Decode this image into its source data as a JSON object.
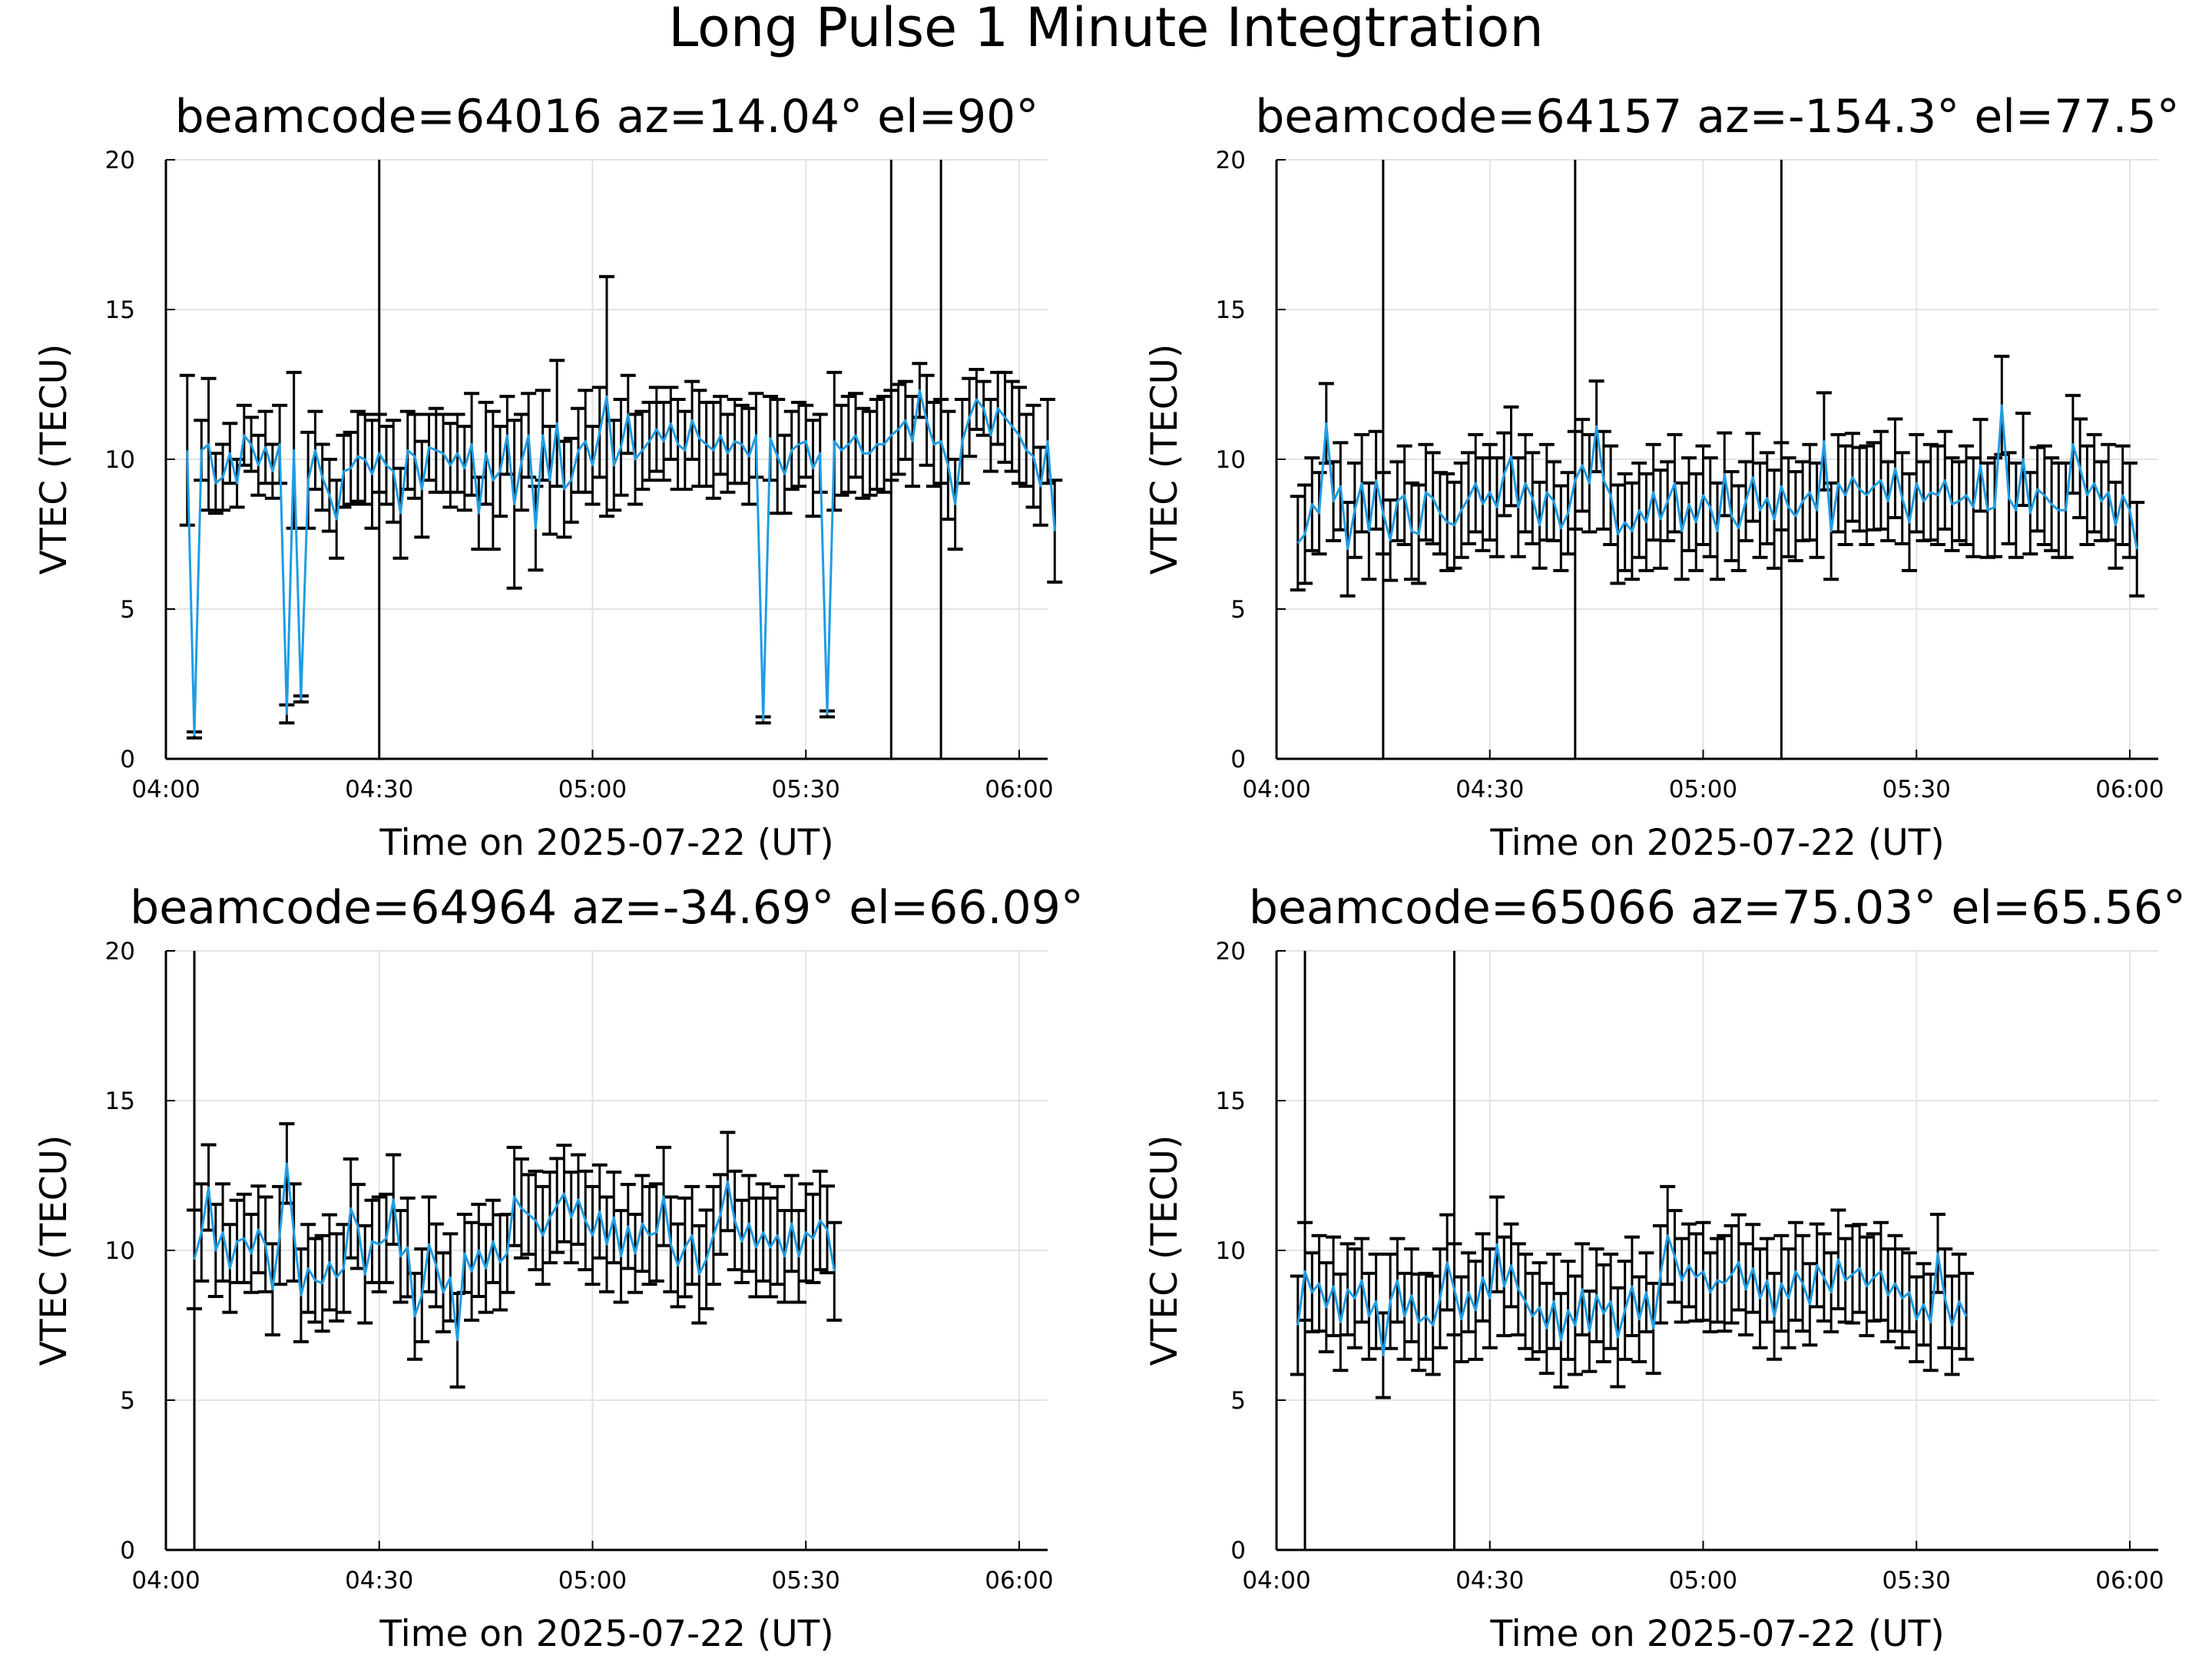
{
  "title": "Long Pulse 1 Minute Integtration",
  "colors": {
    "series": "#1f9ce3",
    "errorbar": "#000000",
    "grid": "#e3e3e3"
  },
  "chart_data": [
    {
      "type": "line",
      "title": "beamcode=64016 az=14.04° el=90°",
      "xlabel": "Time on 2025-07-22 (UT)",
      "ylabel": "VTEC (TECU)",
      "xlim": [
        "04:00",
        "06:04"
      ],
      "ylim": [
        0,
        20
      ],
      "xticks": [
        "04:00",
        "04:30",
        "05:00",
        "05:30",
        "06:00"
      ],
      "yticks": [
        "0",
        "5",
        "10",
        "15",
        "20"
      ],
      "grid": true,
      "x_start": "04:03",
      "x_step_minutes": 1,
      "series": [
        {
          "y": [
            10.3,
            0.8,
            10.3,
            10.5,
            9.2,
            9.4,
            10.2,
            9.2,
            10.8,
            10.5,
            9.8,
            10.4,
            9.6,
            10.5,
            1.5,
            10.3,
            2.0,
            9.3,
            10.3,
            9.4,
            8.8,
            8.0,
            9.6,
            9.7,
            10.1,
            10.0,
            9.5,
            10.2,
            9.8,
            9.6,
            8.2,
            10.3,
            10.1,
            9.0,
            10.4,
            10.3,
            10.2,
            9.8,
            10.2,
            9.7,
            10.5,
            8.2,
            10.2,
            9.3,
            9.6,
            10.8,
            8.5,
            9.9,
            10.8,
            7.7,
            10.8,
            9.3,
            11.2,
            9.0,
            9.3,
            10.3,
            10.6,
            9.8,
            10.9,
            12.1,
            9.8,
            10.4,
            11.5,
            10.0,
            10.3,
            10.6,
            11.0,
            10.6,
            11.2,
            10.5,
            10.3,
            11.3,
            10.7,
            10.5,
            10.3,
            10.8,
            10.2,
            10.6,
            10.5,
            10.1,
            10.8,
            1.3,
            10.7,
            10.1,
            9.5,
            10.3,
            10.5,
            10.6,
            9.7,
            10.2,
            1.5,
            10.6,
            10.3,
            10.5,
            10.8,
            10.2,
            10.2,
            10.5,
            10.5,
            10.8,
            11.0,
            11.3,
            10.6,
            12.3,
            11.3,
            10.5,
            10.6,
            9.8,
            8.5,
            10.6,
            11.4,
            12.0,
            11.7,
            10.8,
            11.7,
            11.4,
            11.1,
            10.8,
            10.3,
            10.1,
            9.1,
            10.6,
            7.6
          ],
          "err": [
            2.5,
            0.1,
            1.0,
            2.2,
            1.0,
            1.1,
            1.0,
            0.8,
            1.0,
            0.9,
            1.0,
            1.2,
            0.9,
            1.3,
            0.3,
            2.6,
            0.1,
            1.6,
            1.3,
            1.1,
            1.2,
            1.3,
            1.2,
            1.2,
            1.5,
            1.5,
            1.8,
            1.3,
            1.3,
            1.7,
            1.5,
            1.3,
            1.4,
            1.6,
            1.1,
            1.4,
            1.3,
            1.4,
            1.3,
            1.4,
            1.7,
            1.2,
            1.7,
            2.3,
            1.5,
            1.3,
            2.8,
            1.6,
            1.4,
            1.4,
            1.5,
            1.8,
            2.1,
            1.6,
            1.4,
            1.4,
            1.7,
            1.3,
            1.5,
            4.0,
            1.5,
            1.6,
            1.3,
            1.5,
            1.3,
            1.3,
            1.4,
            1.3,
            1.2,
            1.5,
            1.3,
            1.3,
            1.6,
            1.4,
            1.6,
            1.3,
            1.3,
            1.4,
            1.3,
            1.6,
            1.4,
            0.1,
            1.4,
            1.9,
            1.3,
            1.3,
            1.4,
            1.2,
            1.6,
            1.3,
            0.1,
            2.3,
            1.5,
            1.6,
            1.4,
            1.5,
            1.4,
            1.5,
            1.6,
            1.5,
            1.5,
            1.3,
            1.5,
            0.9,
            1.5,
            1.4,
            1.4,
            1.8,
            1.5,
            1.4,
            1.3,
            1.0,
            0.9,
            1.2,
            1.2,
            1.5,
            1.5,
            1.6,
            1.2,
            1.7,
            1.3,
            1.4,
            1.7
          ]
        }
      ],
      "vlines": [
        "04:30",
        "05:42",
        "05:49"
      ]
    },
    {
      "type": "line",
      "title": "beamcode=64157 az=-154.3° el=77.5°",
      "xlabel": "Time on 2025-07-22 (UT)",
      "ylabel": "VTEC (TECU)",
      "xlim": [
        "04:00",
        "06:04"
      ],
      "ylim": [
        0,
        20
      ],
      "xticks": [
        "04:00",
        "04:30",
        "05:00",
        "05:30",
        "06:00"
      ],
      "yticks": [
        "0",
        "5",
        "10",
        "15",
        "20"
      ],
      "grid": true,
      "x_start": "04:03",
      "x_step_minutes": 1,
      "series": [
        {
          "y": [
            7.2,
            7.5,
            8.5,
            8.2,
            11.2,
            8.6,
            9.1,
            7.0,
            8.3,
            9.2,
            7.6,
            9.3,
            8.2,
            7.3,
            8.6,
            8.8,
            7.6,
            7.5,
            8.9,
            8.7,
            8.2,
            7.9,
            7.8,
            8.3,
            8.7,
            9.2,
            8.5,
            8.9,
            8.4,
            9.5,
            10.1,
            8.4,
            9.2,
            8.7,
            7.8,
            8.9,
            8.6,
            7.7,
            8.2,
            9.3,
            9.8,
            9.2,
            11.1,
            9.3,
            8.8,
            7.5,
            7.9,
            7.6,
            8.3,
            7.9,
            8.9,
            8.0,
            8.6,
            9.2,
            7.6,
            8.5,
            7.9,
            8.8,
            8.4,
            7.6,
            9.5,
            8.1,
            7.7,
            8.6,
            9.4,
            8.3,
            8.7,
            8.0,
            9.1,
            8.4,
            8.1,
            8.6,
            8.9,
            8.3,
            10.6,
            7.6,
            9.2,
            8.8,
            9.4,
            9.0,
            8.8,
            9.1,
            9.3,
            8.6,
            9.7,
            8.7,
            7.9,
            9.2,
            8.6,
            8.9,
            8.8,
            9.3,
            8.5,
            8.6,
            8.8,
            8.4,
            9.8,
            8.3,
            8.4,
            11.8,
            8.7,
            8.3,
            10.0,
            8.2,
            9.0,
            8.8,
            8.5,
            8.3,
            8.3,
            10.5,
            9.7,
            8.8,
            9.2,
            8.6,
            8.9,
            7.8,
            8.8,
            8.3,
            7.0
          ]
        }
      ],
      "vlines": [
        "04:15",
        "04:42",
        "05:11"
      ]
    },
    {
      "type": "line",
      "title": "beamcode=64964 az=-34.69° el=66.09°",
      "xlabel": "Time on 2025-07-22 (UT)",
      "ylabel": "VTEC (TECU)",
      "xlim": [
        "04:00",
        "06:04"
      ],
      "ylim": [
        0,
        20
      ],
      "xticks": [
        "04:00",
        "04:30",
        "05:00",
        "05:30",
        "06:00"
      ],
      "yticks": [
        "0",
        "5",
        "10",
        "15",
        "20"
      ],
      "grid": true,
      "x_start": "04:04",
      "x_step_minutes": 1,
      "series": [
        {
          "y": [
            9.7,
            10.6,
            12.1,
            10.0,
            10.6,
            9.4,
            10.3,
            10.4,
            9.9,
            10.7,
            10.2,
            8.7,
            10.5,
            12.9,
            10.6,
            8.5,
            9.4,
            9.0,
            8.9,
            9.6,
            9.1,
            9.4,
            11.4,
            10.8,
            9.2,
            10.3,
            10.2,
            10.4,
            11.7,
            9.8,
            10.1,
            7.8,
            8.5,
            10.2,
            9.5,
            8.6,
            9.1,
            7.0,
            9.9,
            9.3,
            10.0,
            9.4,
            10.3,
            9.6,
            9.9,
            11.8,
            11.4,
            11.2,
            11.0,
            10.5,
            11.1,
            11.5,
            11.9,
            11.1,
            11.7,
            11.0,
            10.5,
            11.3,
            10.2,
            11.1,
            9.8,
            10.8,
            9.9,
            10.9,
            10.5,
            10.6,
            11.8,
            10.2,
            9.5,
            10.1,
            10.5,
            9.2,
            9.7,
            10.5,
            11.2,
            12.3,
            11.0,
            10.3,
            10.9,
            10.1,
            10.6,
            10.1,
            10.5,
            9.8,
            10.9,
            9.8,
            10.6,
            10.4,
            11.0,
            10.7,
            9.3
          ]
        }
      ],
      "vlines": [
        "04:04"
      ]
    },
    {
      "type": "line",
      "title": "beamcode=65066 az=75.03° el=65.56°",
      "xlabel": "Time on 2025-07-22 (UT)",
      "ylabel": "VTEC (TECU)",
      "xlim": [
        "04:00",
        "06:04"
      ],
      "ylim": [
        0,
        20
      ],
      "xticks": [
        "04:00",
        "04:30",
        "05:00",
        "05:30",
        "06:00"
      ],
      "yticks": [
        "0",
        "5",
        "10",
        "15",
        "20"
      ],
      "grid": true,
      "x_start": "04:03",
      "x_step_minutes": 1,
      "series": [
        {
          "y": [
            7.5,
            9.3,
            8.6,
            8.9,
            8.1,
            8.8,
            7.6,
            8.7,
            8.4,
            9.0,
            7.8,
            8.3,
            6.5,
            8.3,
            9.0,
            7.8,
            8.5,
            7.6,
            7.8,
            7.5,
            8.4,
            9.6,
            8.7,
            7.7,
            8.6,
            8.0,
            9.1,
            8.4,
            10.2,
            8.8,
            9.5,
            8.7,
            8.3,
            7.8,
            8.1,
            7.4,
            8.3,
            7.0,
            8.0,
            7.5,
            8.7,
            7.3,
            8.5,
            7.9,
            8.3,
            7.1,
            8.0,
            8.8,
            7.7,
            8.6,
            7.4,
            9.2,
            10.5,
            9.8,
            9.0,
            9.5,
            9.1,
            9.3,
            8.6,
            9.0,
            8.9,
            9.2,
            9.6,
            8.7,
            9.4,
            8.4,
            9.0,
            7.8,
            8.9,
            8.4,
            9.3,
            8.9,
            8.2,
            9.5,
            9.1,
            8.6,
            9.7,
            9.0,
            9.2,
            9.4,
            8.8,
            9.1,
            9.3,
            8.5,
            8.9,
            8.4,
            8.6,
            7.7,
            8.2,
            7.6,
            9.9,
            8.4,
            7.5,
            8.3,
            7.8
          ]
        }
      ],
      "vlines": [
        "04:04",
        "04:25"
      ]
    }
  ]
}
